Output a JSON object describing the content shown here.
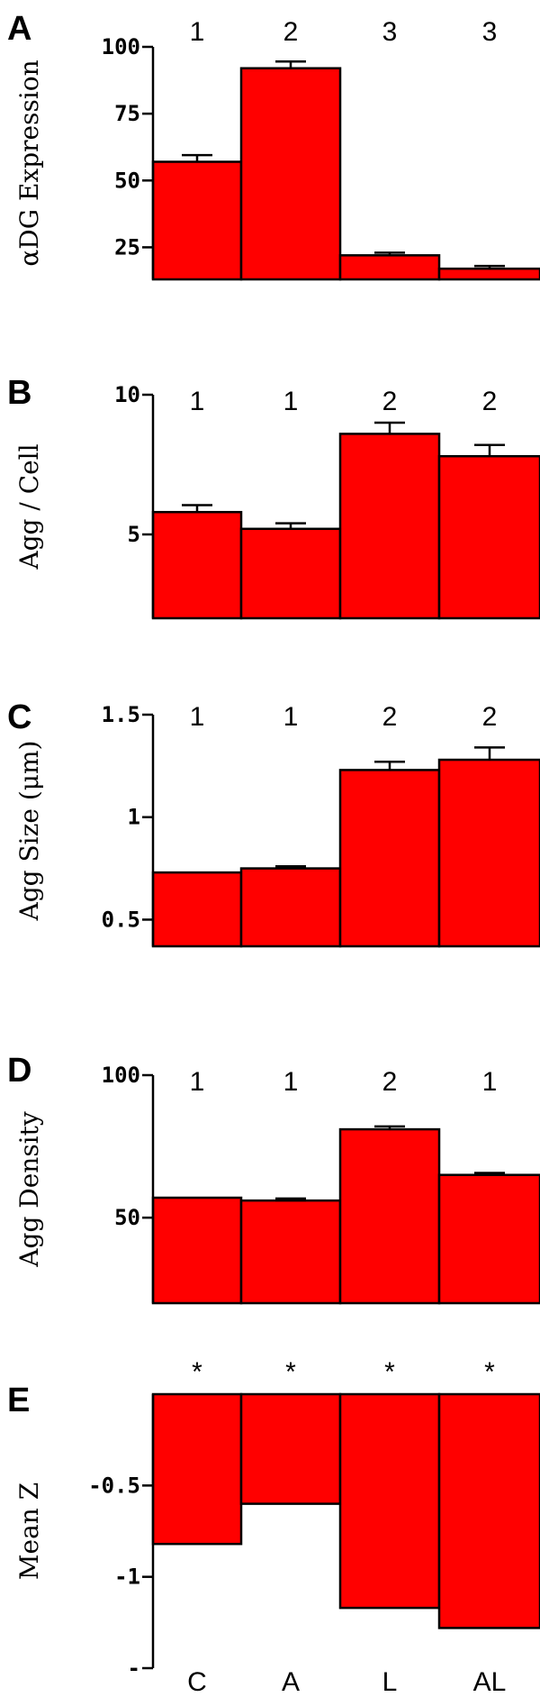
{
  "chart_data": [
    {
      "type": "bar",
      "panel": "A",
      "ylabel": "αDG Expression",
      "categories": [
        "C",
        "A",
        "L",
        "AL"
      ],
      "values": [
        57,
        92,
        22,
        17
      ],
      "errors": [
        2.5,
        2.5,
        1,
        1
      ],
      "group_labels": [
        "1",
        "2",
        "3",
        "3"
      ],
      "yticks": [
        {
          "v": 25,
          "label": "25"
        },
        {
          "v": 50,
          "label": "50"
        },
        {
          "v": 75,
          "label": "75"
        },
        {
          "v": 100,
          "label": "100"
        }
      ],
      "ylim": [
        13,
        100
      ]
    },
    {
      "type": "bar",
      "panel": "B",
      "ylabel": "Agg / Cell",
      "categories": [
        "C",
        "A",
        "L",
        "AL"
      ],
      "values": [
        5.8,
        5.2,
        8.6,
        7.8
      ],
      "errors": [
        0.25,
        0.2,
        0.4,
        0.4
      ],
      "group_labels": [
        "1",
        "1",
        "2",
        "2"
      ],
      "yticks": [
        {
          "v": 5,
          "label": "5"
        },
        {
          "v": 10,
          "label": "10"
        }
      ],
      "ylim": [
        2,
        10
      ]
    },
    {
      "type": "bar",
      "panel": "C",
      "ylabel": "Agg Size (μm)",
      "categories": [
        "C",
        "A",
        "L",
        "AL"
      ],
      "values": [
        0.73,
        0.75,
        1.23,
        1.28
      ],
      "errors": [
        0.0,
        0.01,
        0.04,
        0.06
      ],
      "group_labels": [
        "1",
        "1",
        "2",
        "2"
      ],
      "yticks": [
        {
          "v": 0.5,
          "label": "0.5"
        },
        {
          "v": 1,
          "label": "1"
        },
        {
          "v": 1.5,
          "label": "1.5"
        }
      ],
      "ylim": [
        0.37,
        1.5
      ]
    },
    {
      "type": "bar",
      "panel": "D",
      "ylabel": "Agg Density",
      "categories": [
        "C",
        "A",
        "L",
        "AL"
      ],
      "values": [
        57,
        56,
        81,
        65
      ],
      "errors": [
        0,
        0.7,
        1,
        0.7
      ],
      "group_labels": [
        "1",
        "1",
        "2",
        "1"
      ],
      "yticks": [
        {
          "v": 50,
          "label": "50"
        },
        {
          "v": 100,
          "label": "100"
        }
      ],
      "ylim": [
        20,
        100
      ]
    },
    {
      "type": "bar",
      "panel": "E",
      "ylabel": "Mean Z",
      "categories": [
        "C",
        "A",
        "L",
        "AL"
      ],
      "values": [
        -0.82,
        -0.6,
        -1.17,
        -1.28
      ],
      "errors": [
        0,
        0,
        0,
        0
      ],
      "group_labels": [
        "*",
        "*",
        "*",
        "*"
      ],
      "yticks": [
        {
          "v": -1.5,
          "label": "-"
        },
        {
          "v": -1,
          "label": "-1"
        },
        {
          "v": -0.5,
          "label": "-0.5"
        }
      ],
      "ylim": [
        -1.5,
        0
      ]
    }
  ]
}
